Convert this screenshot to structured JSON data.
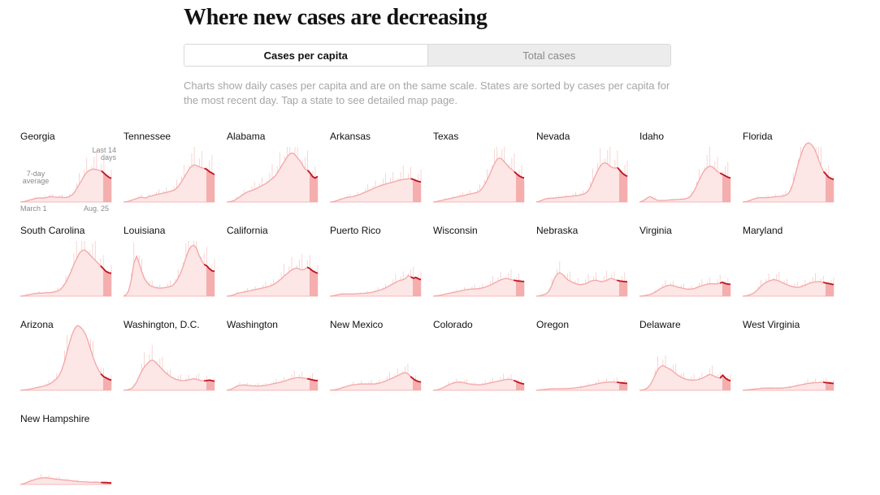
{
  "title": "Where new cases are decreasing",
  "toggle": {
    "active_label": "Cases per capita",
    "inactive_label": "Total cases"
  },
  "description": "Charts show daily cases per capita and are on the same scale. States are sorted by cases per capita for the most recent day. Tap a state to see detailed map page.",
  "annotations": {
    "last14": "Last 14",
    "days": "days",
    "avg1": "7-day",
    "avg2": "average",
    "start_date": "March 1",
    "end_date": "Aug. 25"
  },
  "colors": {
    "line": "#f4a6a6",
    "fill": "#fde6e6",
    "spike": "#f7c9c9",
    "recent_fill": "#f2a3a3",
    "recent_line": "#c1121f"
  },
  "chart_data": {
    "type": "area",
    "x_range": [
      "March 1",
      "Aug. 25"
    ],
    "highlight": "Last 14 days",
    "series_label": "7-day average",
    "series": [
      {
        "name": "Georgia",
        "values": [
          0,
          0.1,
          0.3,
          0.5,
          0.8,
          1.0,
          1.3,
          1.5,
          1.5,
          1.4,
          1.5,
          1.7,
          2.0,
          1.9,
          1.8,
          1.7,
          1.8,
          1.7,
          1.6,
          1.7,
          2.0,
          2.6,
          3.5,
          5.0,
          6.5,
          8.0,
          9.6,
          10.8,
          11.5,
          11.8,
          12.0,
          11.7,
          11.5,
          11.3,
          10.5,
          9.7,
          9.0,
          8.6
        ]
      },
      {
        "name": "Tennessee",
        "values": [
          0,
          0.1,
          0.3,
          0.6,
          0.9,
          1.2,
          1.5,
          1.8,
          1.6,
          1.5,
          2.0,
          2.2,
          2.5,
          2.7,
          2.9,
          3.1,
          3.3,
          3.5,
          3.8,
          4.0,
          4.3,
          5.0,
          6.0,
          7.5,
          9.0,
          10.5,
          12.0,
          13.0,
          13.5,
          13.2,
          12.8,
          12.4,
          12.2,
          11.8,
          11.0,
          10.5,
          10.0
        ]
      },
      {
        "name": "Alabama",
        "values": [
          0,
          0.1,
          0.3,
          0.6,
          1.2,
          1.8,
          2.4,
          3.0,
          3.6,
          3.9,
          4.2,
          4.6,
          5.0,
          5.5,
          6.0,
          6.5,
          7.0,
          7.8,
          8.5,
          9.3,
          10.5,
          12.0,
          13.5,
          15.0,
          16.5,
          17.5,
          17.8,
          17.2,
          16.0,
          15.0,
          13.5,
          12.0,
          11.5,
          10.5,
          9.2,
          8.7,
          9.3
        ]
      },
      {
        "name": "Arkansas",
        "values": [
          0,
          0.1,
          0.3,
          0.6,
          0.9,
          1.2,
          1.5,
          1.7,
          1.8,
          2.0,
          2.2,
          2.5,
          2.8,
          3.2,
          3.6,
          4.0,
          4.4,
          4.8,
          5.2,
          5.6,
          5.9,
          6.2,
          6.5,
          6.8,
          7.0,
          7.3,
          7.5,
          7.8,
          8.0,
          8.2,
          8.3,
          8.4,
          8.5,
          8.2,
          7.8,
          7.5,
          7.3
        ]
      },
      {
        "name": "Texas",
        "values": [
          0,
          0.1,
          0.3,
          0.5,
          0.7,
          0.9,
          1.1,
          1.3,
          1.5,
          1.7,
          1.9,
          2.1,
          2.3,
          2.5,
          2.7,
          2.9,
          3.1,
          3.3,
          3.5,
          4.0,
          5.0,
          6.5,
          8.0,
          10.0,
          12.0,
          14.0,
          15.5,
          16.0,
          15.5,
          14.5,
          13.5,
          12.5,
          11.8,
          11.0,
          10.2,
          9.5,
          9.0,
          8.7
        ]
      },
      {
        "name": "Nevada",
        "values": [
          0,
          0.2,
          0.5,
          0.9,
          1.2,
          1.3,
          1.4,
          1.4,
          1.5,
          1.6,
          1.7,
          1.8,
          1.9,
          2.0,
          2.1,
          2.2,
          2.3,
          2.4,
          2.6,
          2.8,
          3.2,
          4.0,
          5.5,
          7.5,
          9.5,
          11.5,
          13.0,
          14.0,
          14.2,
          13.8,
          13.0,
          12.5,
          12.3,
          12.5,
          11.5,
          10.5,
          9.8,
          9.3
        ]
      },
      {
        "name": "Idaho",
        "values": [
          0,
          0.3,
          0.8,
          1.5,
          2.0,
          1.5,
          1.0,
          0.6,
          0.6,
          0.6,
          0.6,
          0.7,
          0.8,
          0.8,
          0.9,
          0.9,
          1.0,
          1.1,
          1.3,
          1.6,
          2.5,
          4.0,
          6.0,
          8.0,
          10.0,
          11.5,
          12.5,
          13.0,
          12.8,
          12.0,
          11.0,
          10.5,
          10.0,
          9.5,
          9.0,
          8.7
        ]
      },
      {
        "name": "Florida",
        "values": [
          0,
          0.1,
          0.3,
          0.6,
          1.0,
          1.3,
          1.5,
          1.6,
          1.6,
          1.6,
          1.6,
          1.7,
          1.8,
          1.9,
          2.0,
          2.1,
          2.2,
          2.5,
          3.0,
          4.5,
          7.0,
          10.5,
          14.0,
          17.0,
          19.5,
          21.0,
          21.5,
          21.0,
          20.0,
          18.0,
          15.5,
          13.0,
          11.0,
          10.0,
          9.0,
          8.5,
          8.2
        ]
      },
      {
        "name": "South Carolina",
        "values": [
          0,
          0.1,
          0.3,
          0.5,
          0.7,
          0.9,
          1.0,
          1.1,
          1.1,
          1.2,
          1.2,
          1.3,
          1.4,
          1.6,
          1.9,
          2.5,
          3.5,
          5.0,
          7.0,
          9.0,
          11.5,
          13.5,
          15.5,
          16.5,
          16.8,
          16.0,
          15.0,
          14.0,
          13.0,
          12.0,
          11.0,
          10.0,
          9.0,
          8.5,
          8.3
        ]
      },
      {
        "name": "Louisiana",
        "values": [
          0,
          0.5,
          2.0,
          6.0,
          12.0,
          14.5,
          12.0,
          9.0,
          6.5,
          5.0,
          4.0,
          3.5,
          3.2,
          3.0,
          2.9,
          3.0,
          3.1,
          3.3,
          3.5,
          4.0,
          5.0,
          6.5,
          8.5,
          11.0,
          14.0,
          16.5,
          18.0,
          18.5,
          17.5,
          15.0,
          13.0,
          11.5,
          11.0,
          10.0,
          9.2,
          9.0
        ]
      },
      {
        "name": "California",
        "values": [
          0,
          0.1,
          0.3,
          0.6,
          1.0,
          1.2,
          1.4,
          1.6,
          1.8,
          2.0,
          2.2,
          2.4,
          2.6,
          2.8,
          3.0,
          3.2,
          3.5,
          3.8,
          4.2,
          4.8,
          5.5,
          6.3,
          7.2,
          8.0,
          8.8,
          9.5,
          10.0,
          10.2,
          9.8,
          9.5,
          9.8,
          10.5,
          10.0,
          9.2,
          8.7,
          8.3
        ]
      },
      {
        "name": "Puerto Rico",
        "values": [
          0,
          0.1,
          0.3,
          0.5,
          0.7,
          0.8,
          0.8,
          0.8,
          0.8,
          0.8,
          0.8,
          0.9,
          0.9,
          1.0,
          1.1,
          1.2,
          1.3,
          1.5,
          1.7,
          2.0,
          2.3,
          2.6,
          3.0,
          3.5,
          4.0,
          4.5,
          5.0,
          5.5,
          5.8,
          6.0,
          6.5,
          7.5,
          7.0,
          6.5,
          6.8,
          6.3,
          6.0
        ]
      },
      {
        "name": "Wisconsin",
        "values": [
          0,
          0.1,
          0.2,
          0.4,
          0.6,
          0.8,
          1.0,
          1.2,
          1.4,
          1.6,
          1.8,
          2.0,
          2.2,
          2.4,
          2.5,
          2.6,
          2.6,
          2.7,
          2.8,
          3.0,
          3.3,
          3.6,
          4.0,
          4.5,
          5.0,
          5.5,
          5.9,
          6.2,
          6.4,
          6.3,
          6.0,
          5.8,
          5.6,
          5.5,
          5.4,
          5.3
        ]
      },
      {
        "name": "Nebraska",
        "values": [
          0,
          0.1,
          0.3,
          0.6,
          1.0,
          2.0,
          4.0,
          6.5,
          8.0,
          8.5,
          8.0,
          7.0,
          6.0,
          5.5,
          5.0,
          4.6,
          4.3,
          4.2,
          4.3,
          4.5,
          5.0,
          5.5,
          5.7,
          5.8,
          5.5,
          5.2,
          5.4,
          5.7,
          6.2,
          6.5,
          6.0,
          5.8,
          5.5,
          5.4,
          5.3,
          5.2
        ]
      },
      {
        "name": "Virginia",
        "values": [
          0,
          0.1,
          0.2,
          0.4,
          0.6,
          1.0,
          1.5,
          2.1,
          2.7,
          3.2,
          3.6,
          3.9,
          4.0,
          3.8,
          3.5,
          3.2,
          3.0,
          2.8,
          2.6,
          2.5,
          2.6,
          2.8,
          3.1,
          3.5,
          3.8,
          4.1,
          4.3,
          4.5,
          4.5,
          4.4,
          4.5,
          4.8,
          5.0,
          4.6,
          4.4,
          4.3
        ]
      },
      {
        "name": "Maryland",
        "values": [
          0,
          0.1,
          0.3,
          0.6,
          1.0,
          1.7,
          2.6,
          3.6,
          4.4,
          5.0,
          5.5,
          5.8,
          6.0,
          5.8,
          5.5,
          5.0,
          4.6,
          4.2,
          3.8,
          3.5,
          3.3,
          3.2,
          3.3,
          3.6,
          4.0,
          4.4,
          4.8,
          5.0,
          5.2,
          5.3,
          5.2,
          5.0,
          4.8,
          4.6,
          4.4,
          4.2
        ]
      },
      {
        "name": "Arizona",
        "values": [
          0,
          0.1,
          0.2,
          0.3,
          0.5,
          0.7,
          0.9,
          1.1,
          1.3,
          1.5,
          1.8,
          2.2,
          2.7,
          3.4,
          4.2,
          5.5,
          7.5,
          10.5,
          14.0,
          17.5,
          20.5,
          22.5,
          23.5,
          23.0,
          22.0,
          20.5,
          18.0,
          15.0,
          12.0,
          9.5,
          7.5,
          6.0,
          5.0,
          4.5,
          4.0,
          3.7
        ]
      },
      {
        "name": "Washington, D.C.",
        "values": [
          0,
          0.1,
          0.3,
          0.6,
          1.5,
          3.0,
          5.0,
          7.0,
          8.5,
          9.5,
          10.5,
          11.0,
          10.5,
          9.5,
          8.5,
          7.5,
          6.5,
          5.8,
          5.0,
          4.5,
          4.0,
          3.8,
          3.6,
          3.5,
          3.6,
          3.8,
          4.0,
          4.2,
          4.0,
          3.8,
          3.5,
          3.4,
          3.5,
          3.7,
          3.5,
          3.3
        ]
      },
      {
        "name": "Washington",
        "values": [
          0,
          0.2,
          0.5,
          1.0,
          1.5,
          1.8,
          1.9,
          1.9,
          1.8,
          1.7,
          1.6,
          1.6,
          1.6,
          1.6,
          1.7,
          1.8,
          2.0,
          2.2,
          2.4,
          2.6,
          2.8,
          3.0,
          3.3,
          3.6,
          3.9,
          4.2,
          4.4,
          4.6,
          4.6,
          4.5,
          4.4,
          4.2,
          4.0,
          3.8,
          3.6,
          3.5
        ]
      },
      {
        "name": "New Mexico",
        "values": [
          0,
          0.1,
          0.2,
          0.4,
          0.7,
          1.0,
          1.3,
          1.6,
          1.8,
          2.0,
          2.1,
          2.2,
          2.3,
          2.3,
          2.3,
          2.3,
          2.3,
          2.3,
          2.4,
          2.6,
          2.9,
          3.2,
          3.6,
          4.0,
          4.4,
          4.8,
          5.3,
          5.8,
          6.2,
          6.4,
          6.0,
          5.0,
          4.2,
          3.6,
          3.2,
          3.0
        ]
      },
      {
        "name": "Colorado",
        "values": [
          0,
          0.1,
          0.3,
          0.6,
          1.0,
          1.5,
          2.0,
          2.4,
          2.7,
          2.9,
          3.0,
          2.9,
          2.7,
          2.5,
          2.3,
          2.2,
          2.1,
          2.0,
          2.0,
          2.1,
          2.3,
          2.5,
          2.7,
          2.9,
          3.1,
          3.3,
          3.5,
          3.7,
          3.9,
          4.0,
          3.9,
          3.6,
          3.2,
          2.8,
          2.5,
          2.3
        ]
      },
      {
        "name": "Oregon",
        "values": [
          0,
          0.1,
          0.2,
          0.3,
          0.4,
          0.5,
          0.6,
          0.6,
          0.6,
          0.6,
          0.6,
          0.6,
          0.7,
          0.7,
          0.8,
          0.9,
          1.0,
          1.1,
          1.3,
          1.5,
          1.7,
          1.9,
          2.1,
          2.3,
          2.5,
          2.7,
          2.8,
          2.9,
          3.0,
          3.0,
          3.0,
          2.9,
          2.8,
          2.7,
          2.6,
          2.5
        ]
      },
      {
        "name": "Delaware",
        "values": [
          0,
          0.1,
          0.3,
          0.8,
          1.8,
          3.5,
          5.5,
          7.5,
          8.5,
          9.0,
          8.5,
          8.0,
          7.5,
          6.8,
          6.0,
          5.3,
          4.8,
          4.3,
          4.0,
          3.8,
          3.7,
          3.7,
          3.8,
          4.0,
          4.3,
          4.8,
          5.3,
          5.8,
          5.5,
          5.0,
          4.6,
          4.4,
          5.5,
          4.5,
          3.8,
          3.5
        ]
      },
      {
        "name": "West Virginia",
        "values": [
          0,
          0.1,
          0.2,
          0.3,
          0.4,
          0.5,
          0.6,
          0.7,
          0.8,
          0.8,
          0.8,
          0.8,
          0.8,
          0.8,
          0.8,
          0.8,
          0.9,
          1.0,
          1.1,
          1.3,
          1.5,
          1.7,
          1.9,
          2.1,
          2.3,
          2.5,
          2.6,
          2.7,
          2.8,
          2.8,
          2.9,
          2.9,
          2.8,
          2.7,
          2.6,
          2.5
        ]
      },
      {
        "name": "New Hampshire",
        "values": [
          0,
          0.2,
          0.5,
          0.9,
          1.3,
          1.6,
          1.9,
          2.1,
          2.3,
          2.4,
          2.4,
          2.3,
          2.2,
          2.0,
          1.9,
          1.8,
          1.7,
          1.6,
          1.5,
          1.4,
          1.3,
          1.2,
          1.1,
          1.0,
          1.0,
          0.9,
          0.9,
          0.8,
          0.8,
          0.8,
          0.8,
          0.7,
          0.7,
          0.7,
          0.6,
          0.6
        ]
      }
    ]
  }
}
